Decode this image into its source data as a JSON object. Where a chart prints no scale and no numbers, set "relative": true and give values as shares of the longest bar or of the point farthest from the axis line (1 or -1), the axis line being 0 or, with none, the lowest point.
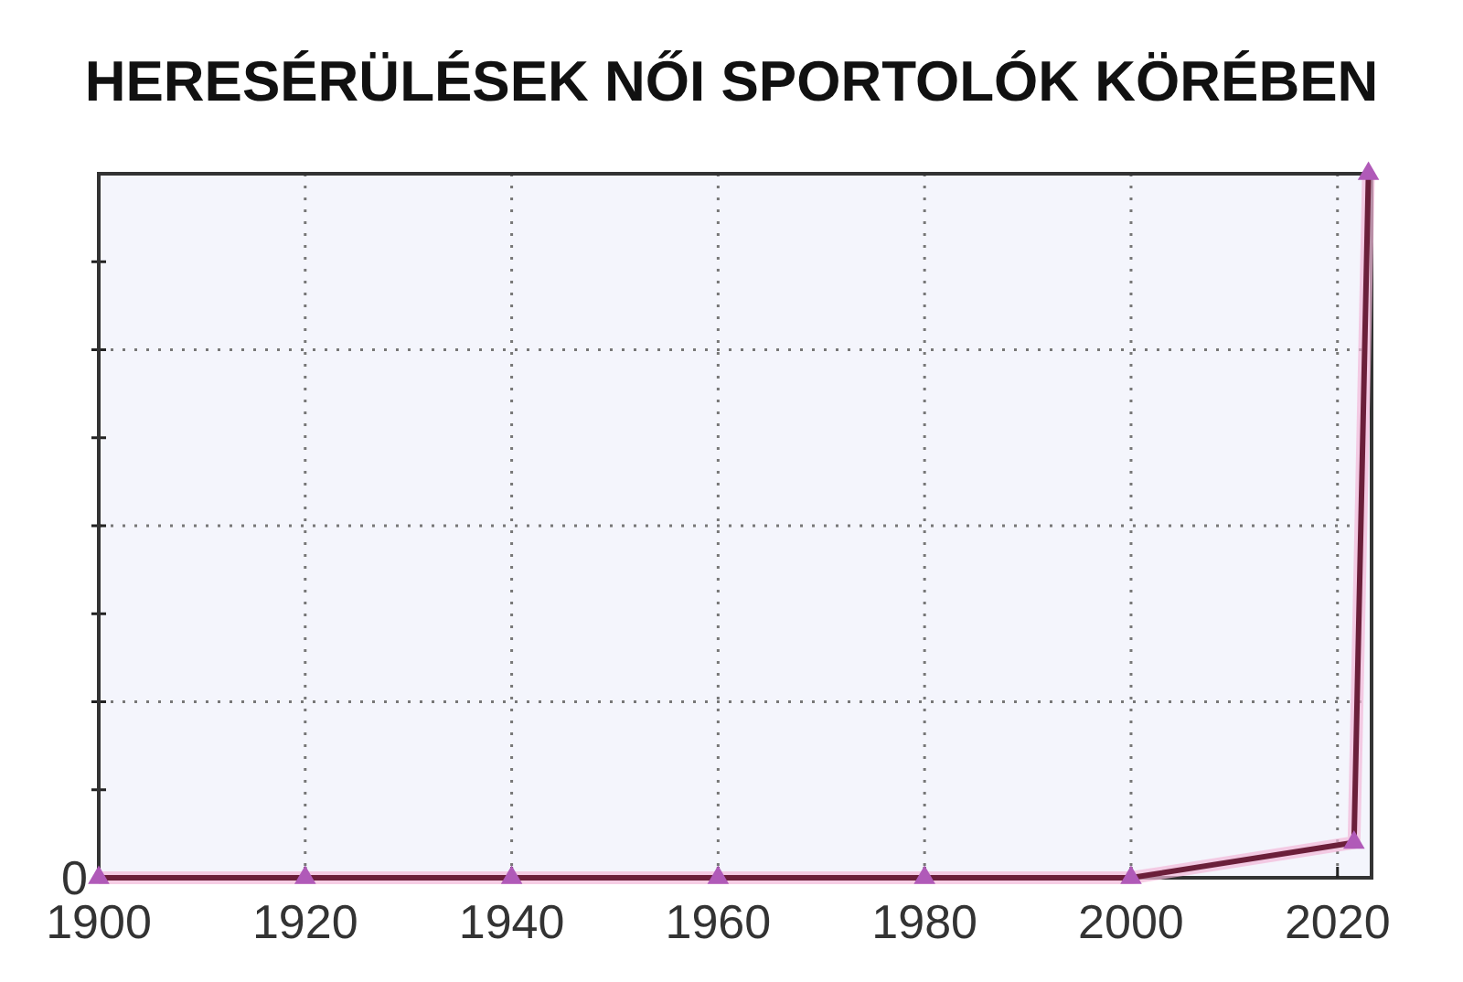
{
  "chart_data": {
    "type": "line",
    "title": "HERESÉRÜLÉSEK NŐI SPORTOLÓK KÖRÉBEN",
    "relative": true,
    "x": [
      1900,
      1920,
      1940,
      1960,
      1980,
      2000,
      2021.6,
      2023
    ],
    "series": [
      {
        "color": "#6b1f3a",
        "values": [
          0,
          0,
          0,
          0,
          0,
          0,
          0.05,
          1
        ]
      }
    ],
    "xlim": [
      1900,
      2023.3
    ],
    "xticks": [
      1900,
      1920,
      1940,
      1960,
      1980,
      2000,
      2020
    ],
    "grid": true,
    "marker": "triangle",
    "line_style": "solid",
    "annotations": [
      {
        "text": "0",
        "x": 1900,
        "y": 0
      }
    ]
  }
}
